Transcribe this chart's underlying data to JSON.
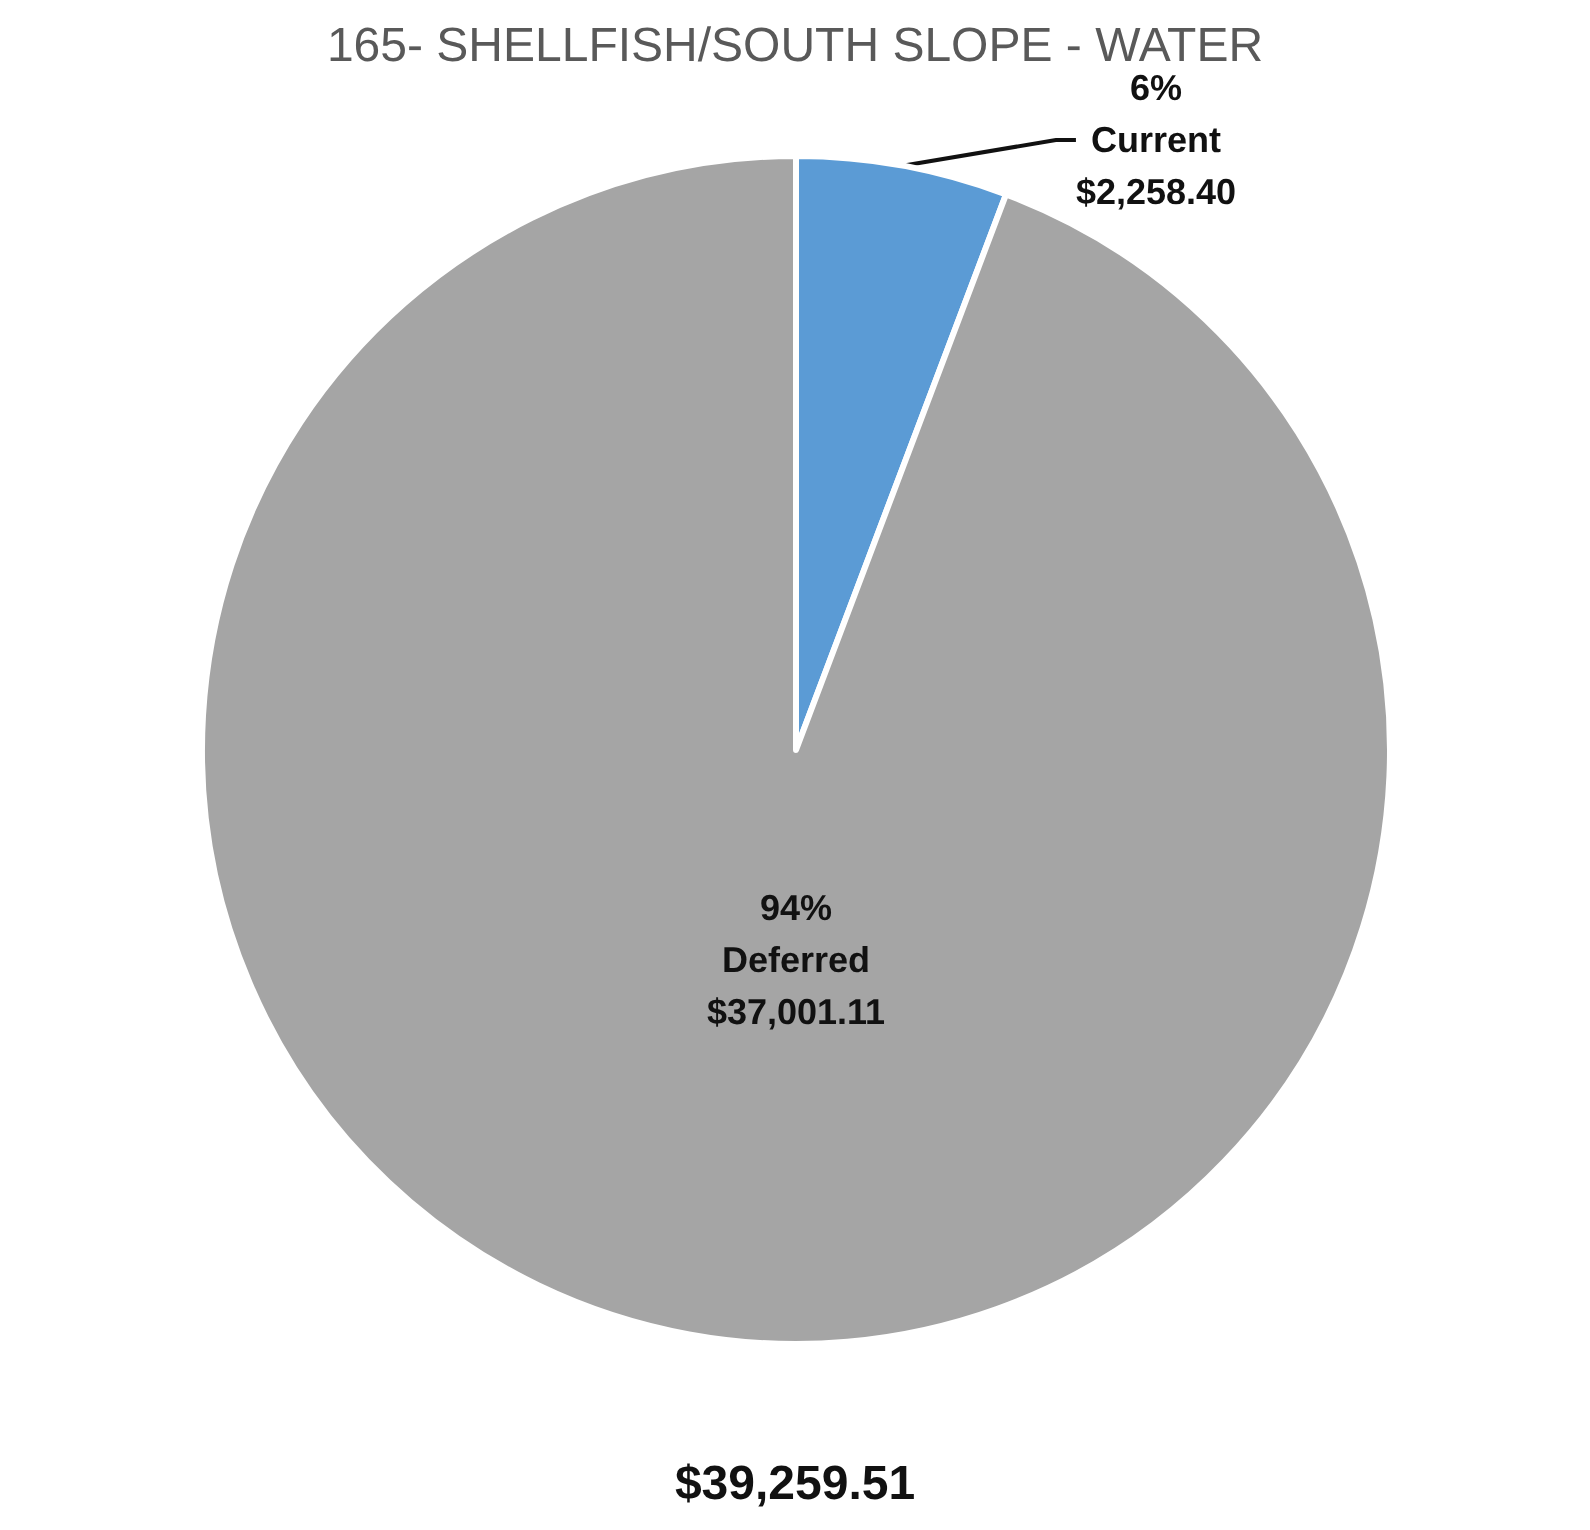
{
  "chart_data": {
    "type": "pie",
    "title": "165- SHELLFISH/SOUTH SLOPE - WATER",
    "categories": [
      "Current",
      "Deferred"
    ],
    "values": [
      2258.4,
      37001.11
    ],
    "colors": [
      "#5b9bd5",
      "#a5a5a5"
    ],
    "value_labels": [
      "$2,258.40",
      "$37,001.11"
    ],
    "annotations": [
      "6%",
      "94%"
    ],
    "totals": [
      "$39,259.51"
    ],
    "legend": false
  }
}
